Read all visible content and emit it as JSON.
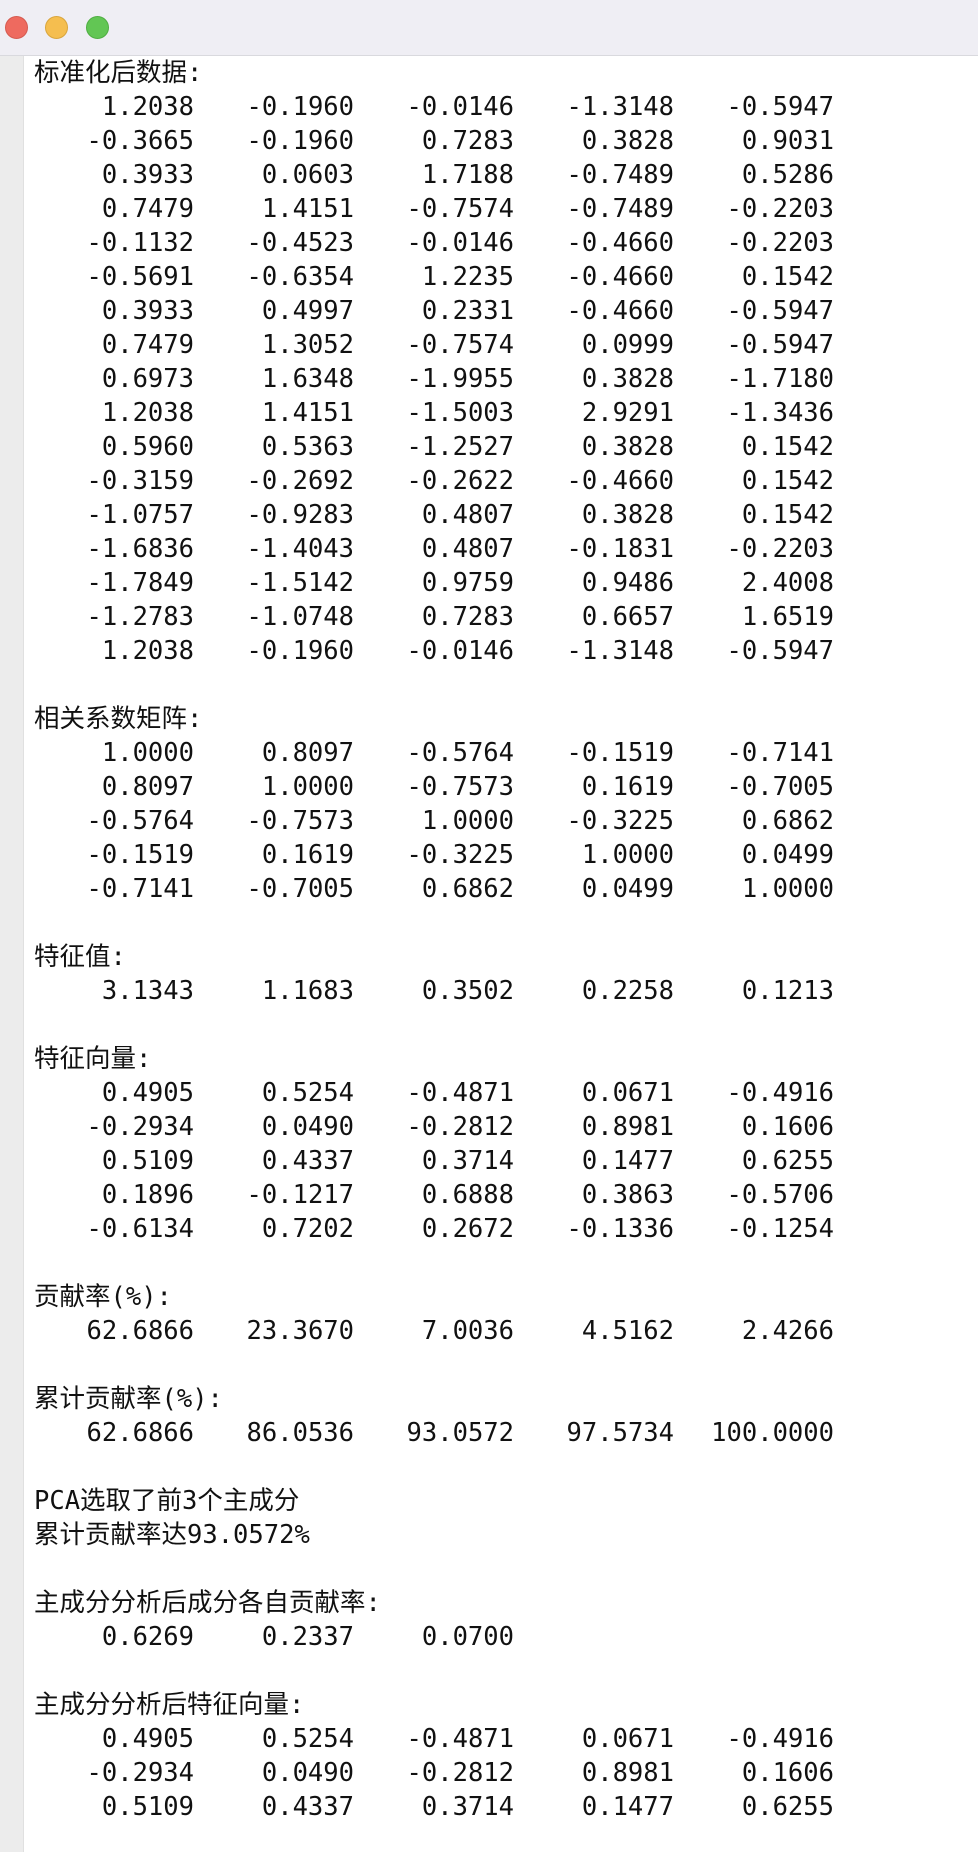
{
  "sections": [
    {
      "title": "标准化后数据:",
      "rows": [
        [
          "1.2038",
          "-0.1960",
          "-0.0146",
          "-1.3148",
          "-0.5947"
        ],
        [
          "-0.3665",
          "-0.1960",
          "0.7283",
          "0.3828",
          "0.9031"
        ],
        [
          "0.3933",
          "0.0603",
          "1.7188",
          "-0.7489",
          "0.5286"
        ],
        [
          "0.7479",
          "1.4151",
          "-0.7574",
          "-0.7489",
          "-0.2203"
        ],
        [
          "-0.1132",
          "-0.4523",
          "-0.0146",
          "-0.4660",
          "-0.2203"
        ],
        [
          "-0.5691",
          "-0.6354",
          "1.2235",
          "-0.4660",
          "0.1542"
        ],
        [
          "0.3933",
          "0.4997",
          "0.2331",
          "-0.4660",
          "-0.5947"
        ],
        [
          "0.7479",
          "1.3052",
          "-0.7574",
          "0.0999",
          "-0.5947"
        ],
        [
          "0.6973",
          "1.6348",
          "-1.9955",
          "0.3828",
          "-1.7180"
        ],
        [
          "1.2038",
          "1.4151",
          "-1.5003",
          "2.9291",
          "-1.3436"
        ],
        [
          "0.5960",
          "0.5363",
          "-1.2527",
          "0.3828",
          "0.1542"
        ],
        [
          "-0.3159",
          "-0.2692",
          "-0.2622",
          "-0.4660",
          "0.1542"
        ],
        [
          "-1.0757",
          "-0.9283",
          "0.4807",
          "0.3828",
          "0.1542"
        ],
        [
          "-1.6836",
          "-1.4043",
          "0.4807",
          "-0.1831",
          "-0.2203"
        ],
        [
          "-1.7849",
          "-1.5142",
          "0.9759",
          "0.9486",
          "2.4008"
        ],
        [
          "-1.2783",
          "-1.0748",
          "0.7283",
          "0.6657",
          "1.6519"
        ],
        [
          "1.2038",
          "-0.1960",
          "-0.0146",
          "-1.3148",
          "-0.5947"
        ]
      ]
    },
    {
      "title": "相关系数矩阵:",
      "rows": [
        [
          "1.0000",
          "0.8097",
          "-0.5764",
          "-0.1519",
          "-0.7141"
        ],
        [
          "0.8097",
          "1.0000",
          "-0.7573",
          "0.1619",
          "-0.7005"
        ],
        [
          "-0.5764",
          "-0.7573",
          "1.0000",
          "-0.3225",
          "0.6862"
        ],
        [
          "-0.1519",
          "0.1619",
          "-0.3225",
          "1.0000",
          "0.0499"
        ],
        [
          "-0.7141",
          "-0.7005",
          "0.6862",
          "0.0499",
          "1.0000"
        ]
      ]
    },
    {
      "title": "特征值:",
      "rows": [
        [
          "3.1343",
          "1.1683",
          "0.3502",
          "0.2258",
          "0.1213"
        ]
      ]
    },
    {
      "title": "特征向量:",
      "rows": [
        [
          "0.4905",
          "0.5254",
          "-0.4871",
          "0.0671",
          "-0.4916"
        ],
        [
          "-0.2934",
          "0.0490",
          "-0.2812",
          "0.8981",
          "0.1606"
        ],
        [
          "0.5109",
          "0.4337",
          "0.3714",
          "0.1477",
          "0.6255"
        ],
        [
          "0.1896",
          "-0.1217",
          "0.6888",
          "0.3863",
          "-0.5706"
        ],
        [
          "-0.6134",
          "0.7202",
          "0.2672",
          "-0.1336",
          "-0.1254"
        ]
      ]
    },
    {
      "title": "贡献率(%):",
      "rows": [
        [
          "62.6866",
          "23.3670",
          "7.0036",
          "4.5162",
          "2.4266"
        ]
      ]
    },
    {
      "title": "累计贡献率(%):",
      "rows": [
        [
          "62.6866",
          "86.0536",
          "93.0572",
          "97.5734",
          "100.0000"
        ]
      ]
    },
    {
      "title": "PCA选取了前3个主成分",
      "extra": "累计贡献率达93.0572%",
      "rows": []
    },
    {
      "title": "主成分分析后成分各自贡献率:",
      "rows": [
        [
          "0.6269",
          "0.2337",
          "0.0700"
        ]
      ]
    },
    {
      "title": "主成分分析后特征向量:",
      "rows": [
        [
          "0.4905",
          "0.5254",
          "-0.4871",
          "0.0671",
          "-0.4916"
        ],
        [
          "-0.2934",
          "0.0490",
          "-0.2812",
          "0.8981",
          "0.1606"
        ],
        [
          "0.5109",
          "0.4337",
          "0.3714",
          "0.1477",
          "0.6255"
        ]
      ]
    }
  ]
}
